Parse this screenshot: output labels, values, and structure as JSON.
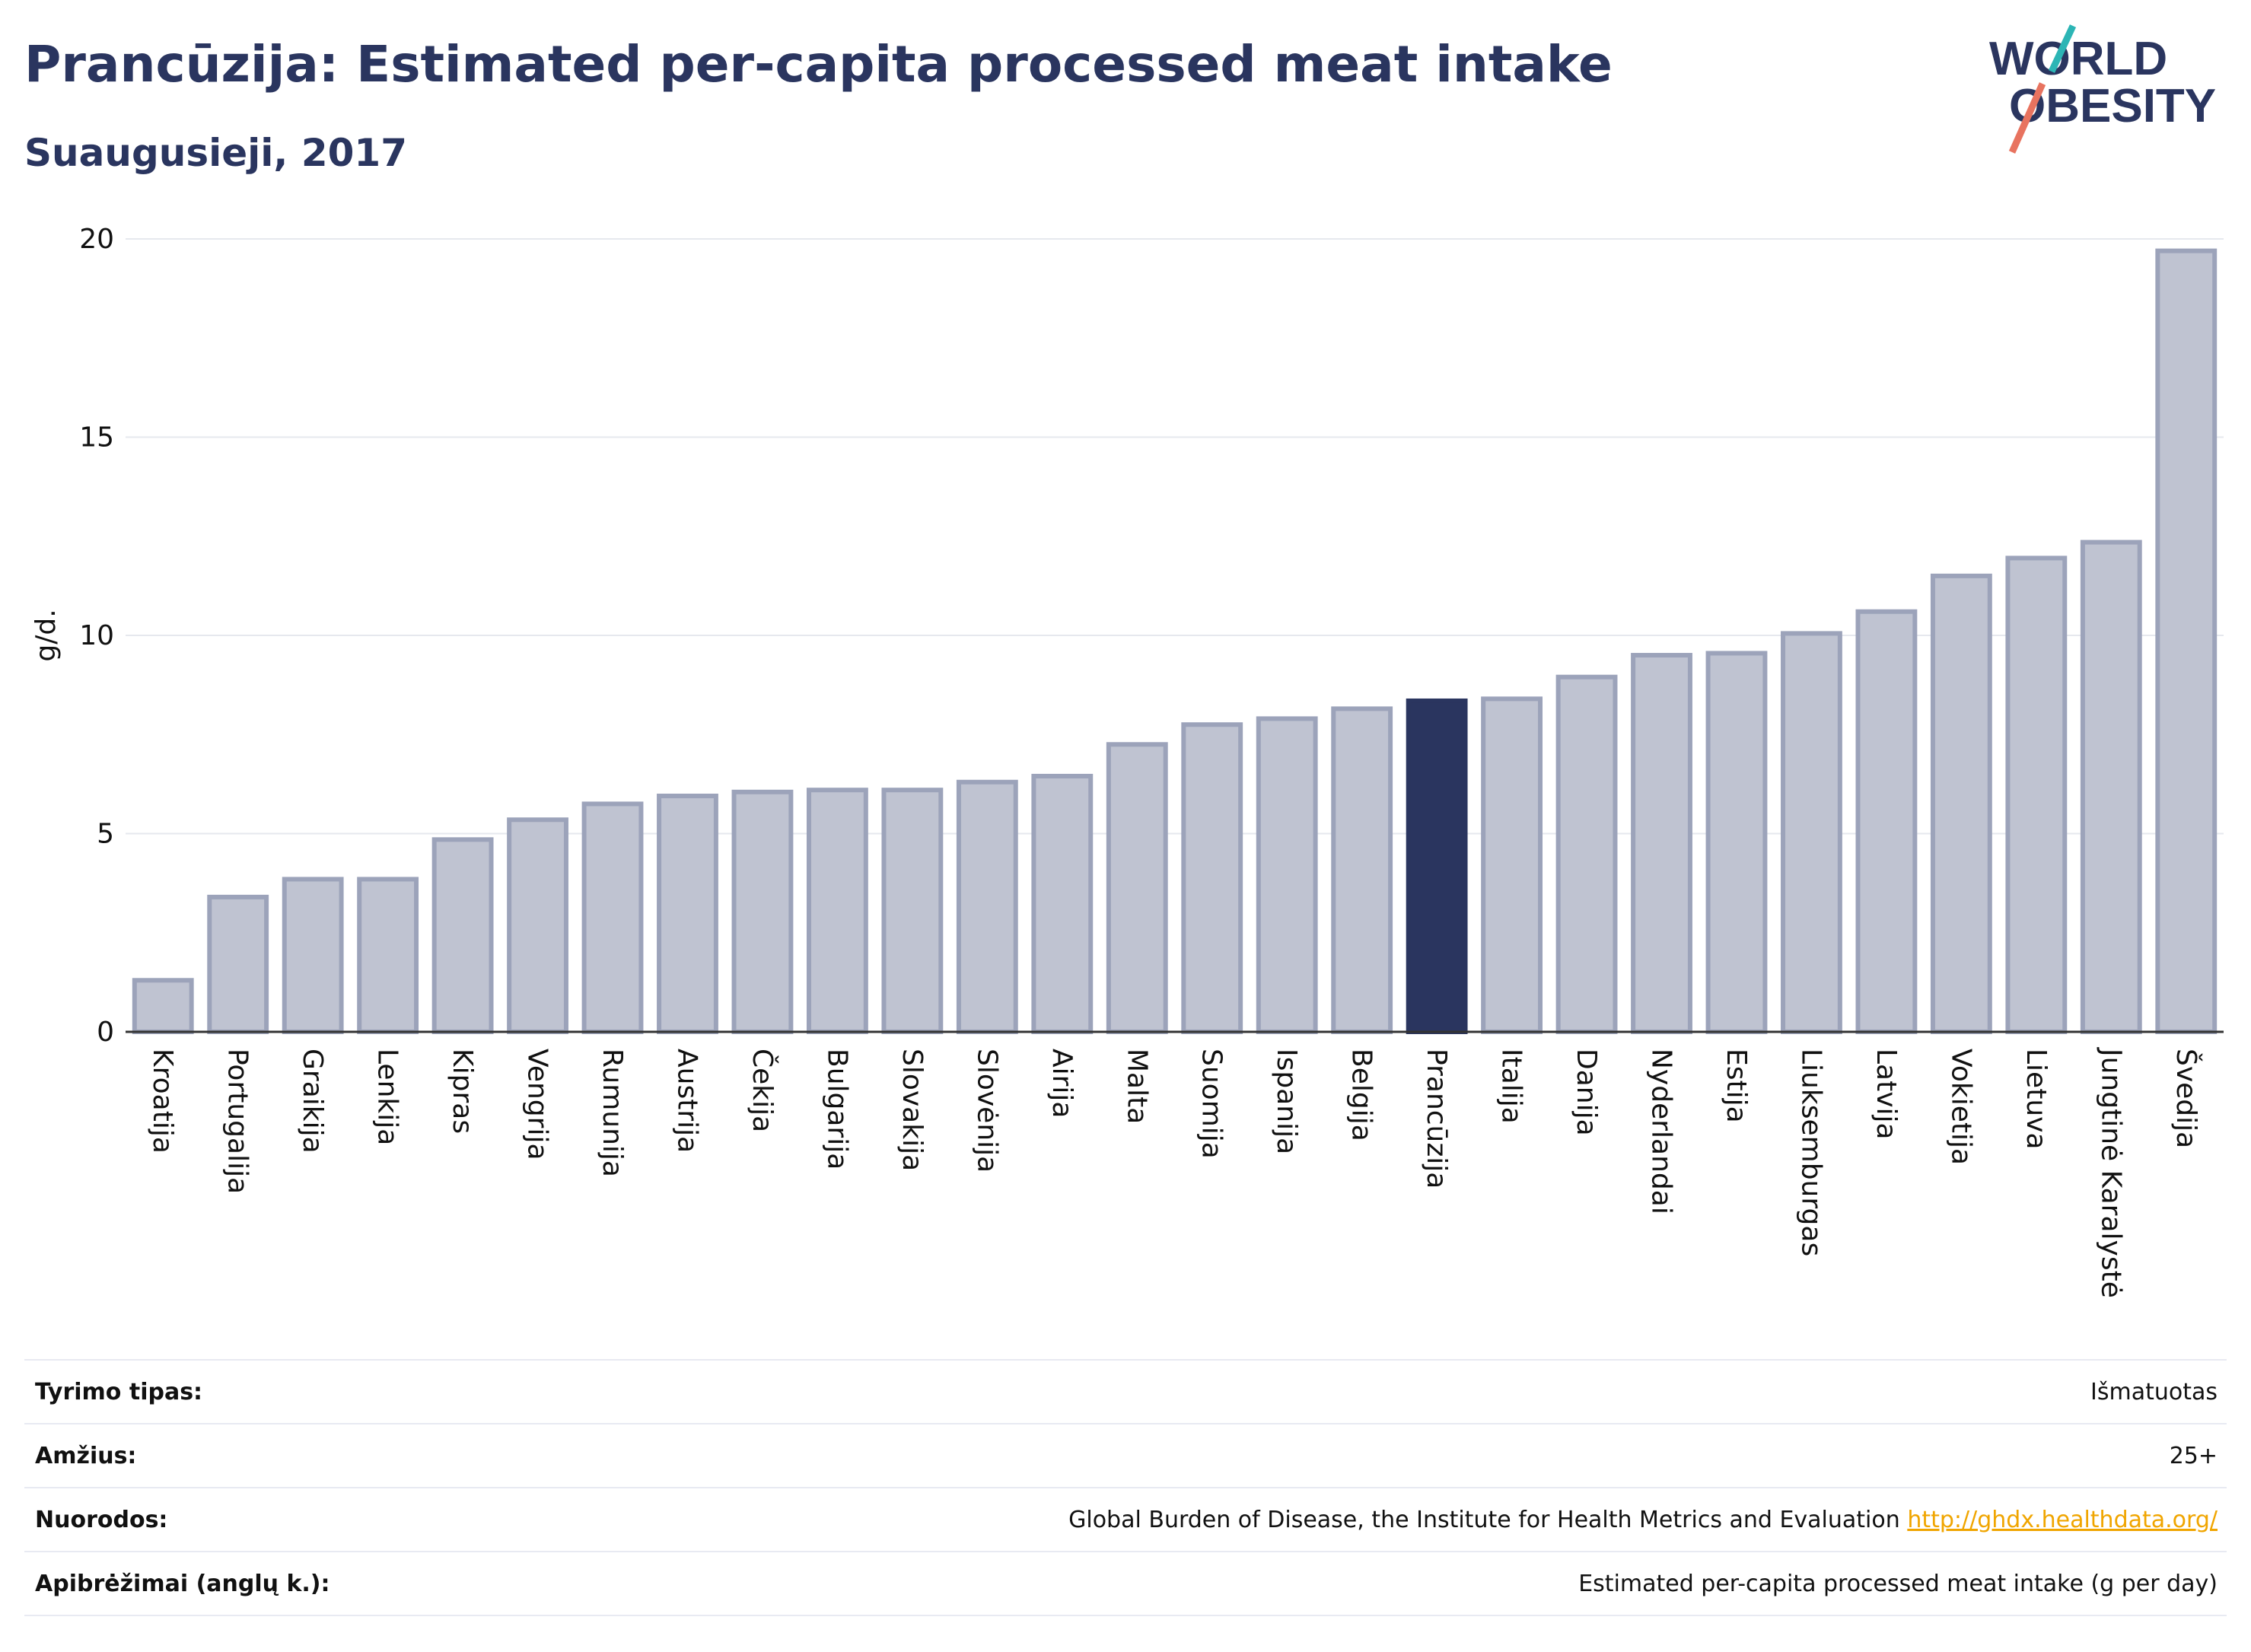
{
  "header": {
    "title": "Prancūzija: Estimated per-capita processed meat intake",
    "subtitle": "Suaugusieji, 2017"
  },
  "logo": {
    "line1": "WORLD",
    "line2": "OBESITY"
  },
  "colors": {
    "highlight": "#2a355f",
    "bar_fill": "#bfc3d1",
    "bar_stroke": "#9ca3ba",
    "grid": "#e6e8ee",
    "link": "#f0a500"
  },
  "chart_data": {
    "type": "bar",
    "ylabel": "g/d.",
    "ylim": [
      0,
      20
    ],
    "yticks": [
      0,
      5,
      10,
      15,
      20
    ],
    "grid": true,
    "highlight": "Prancūzija",
    "categories": [
      "Kroatija",
      "Portugalija",
      "Graikija",
      "Lenkija",
      "Kipras",
      "Vengrija",
      "Rumunija",
      "Austrija",
      "Čekija",
      "Bulgarija",
      "Slovakija",
      "Slovėnija",
      "Airija",
      "Malta",
      "Suomija",
      "Ispanija",
      "Belgija",
      "Prancūzija",
      "Italija",
      "Danija",
      "Nyderlandai",
      "Estija",
      "Liuksemburgas",
      "Latvija",
      "Vokietija",
      "Lietuva",
      "Jungtinė Karalystė",
      "Švedija"
    ],
    "values": [
      1.3,
      3.4,
      3.85,
      3.85,
      4.85,
      5.35,
      5.75,
      5.95,
      6.05,
      6.1,
      6.1,
      6.3,
      6.45,
      7.25,
      7.75,
      7.9,
      8.15,
      8.35,
      8.4,
      8.95,
      9.5,
      9.55,
      10.05,
      10.6,
      11.5,
      11.95,
      12.35,
      19.7
    ]
  },
  "meta": {
    "rows": [
      {
        "label": "Tyrimo tipas:",
        "value": "Išmatuotas"
      },
      {
        "label": "Amžius:",
        "value": "25+"
      },
      {
        "label": "Nuorodos:",
        "value": "Global Burden of Disease, the Institute for Health Metrics and Evaluation",
        "link": "http://ghdx.healthdata.org/"
      },
      {
        "label": "Apibrėžimai (anglų k.):",
        "value": "Estimated per-capita processed meat intake (g per day)"
      }
    ]
  }
}
